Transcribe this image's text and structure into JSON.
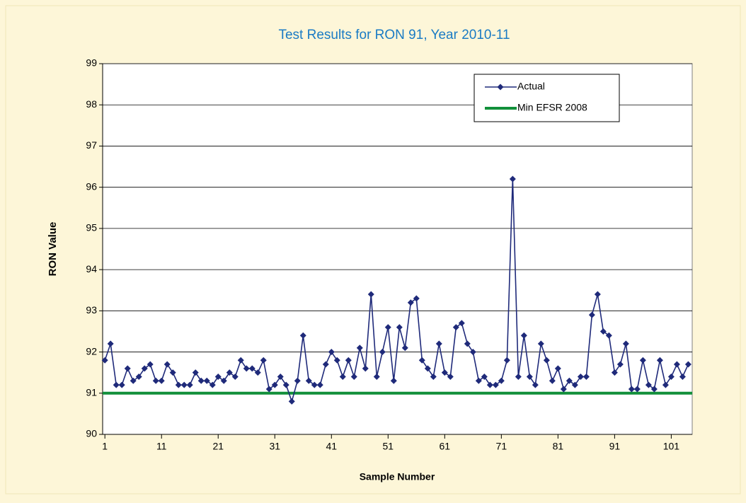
{
  "chart_data": {
    "type": "line",
    "title": "Test Results for RON 91, Year 2010-11",
    "x_label": "Sample Number",
    "y_label": "RON Value",
    "x": [
      1,
      2,
      3,
      4,
      5,
      6,
      7,
      8,
      9,
      10,
      11,
      12,
      13,
      14,
      15,
      16,
      17,
      18,
      19,
      20,
      21,
      22,
      23,
      24,
      25,
      26,
      27,
      28,
      29,
      30,
      31,
      32,
      33,
      34,
      35,
      36,
      37,
      38,
      39,
      40,
      41,
      42,
      43,
      44,
      45,
      46,
      47,
      48,
      49,
      50,
      51,
      52,
      53,
      54,
      55,
      56,
      57,
      58,
      59,
      60,
      61,
      62,
      63,
      64,
      65,
      66,
      67,
      68,
      69,
      70,
      71,
      72,
      73,
      74,
      75,
      76,
      77,
      78,
      79,
      80,
      81,
      82,
      83,
      84,
      85,
      86,
      87,
      88,
      89,
      90,
      91,
      92,
      93,
      94,
      95,
      96,
      97,
      98,
      99,
      100,
      101,
      102,
      103,
      104
    ],
    "series": [
      {
        "name": "Actual",
        "color": "#1f2a7a",
        "values": [
          91.8,
          92.2,
          91.2,
          91.2,
          91.6,
          91.3,
          91.4,
          91.6,
          91.7,
          91.3,
          91.3,
          91.7,
          91.5,
          91.2,
          91.2,
          91.2,
          91.5,
          91.3,
          91.3,
          91.2,
          91.4,
          91.3,
          91.5,
          91.4,
          91.8,
          91.6,
          91.6,
          91.5,
          91.8,
          91.1,
          91.2,
          91.4,
          91.2,
          90.8,
          91.3,
          92.4,
          91.3,
          91.2,
          91.2,
          91.7,
          92.0,
          91.8,
          91.4,
          91.8,
          91.4,
          92.1,
          91.6,
          93.4,
          91.4,
          92.0,
          92.6,
          91.3,
          92.6,
          92.1,
          93.2,
          93.3,
          91.8,
          91.6,
          91.4,
          92.2,
          91.5,
          91.4,
          92.6,
          92.7,
          92.2,
          92.0,
          91.3,
          91.4,
          91.2,
          91.2,
          91.3,
          91.8,
          96.2,
          91.4,
          92.4,
          91.4,
          91.2,
          92.2,
          91.8,
          91.3,
          91.6,
          91.1,
          91.3,
          91.2,
          91.4,
          91.4,
          92.9,
          93.4,
          92.5,
          92.4,
          91.5,
          91.7,
          92.2,
          91.1,
          91.1,
          91.8,
          91.2,
          91.1,
          91.8,
          91.2,
          91.4,
          91.7,
          91.4,
          91.7
        ]
      }
    ],
    "reference_line": {
      "name": "Min EFSR 2008",
      "value": 91,
      "color": "#12903a"
    },
    "xlim": [
      0.6,
      104.7
    ],
    "xticks": [
      1,
      11,
      21,
      31,
      41,
      51,
      61,
      71,
      81,
      91,
      101
    ],
    "ylim": [
      90,
      99
    ],
    "yticks": [
      90,
      91,
      92,
      93,
      94,
      95,
      96,
      97,
      98,
      99
    ],
    "grid": true,
    "legend": "upper right"
  }
}
